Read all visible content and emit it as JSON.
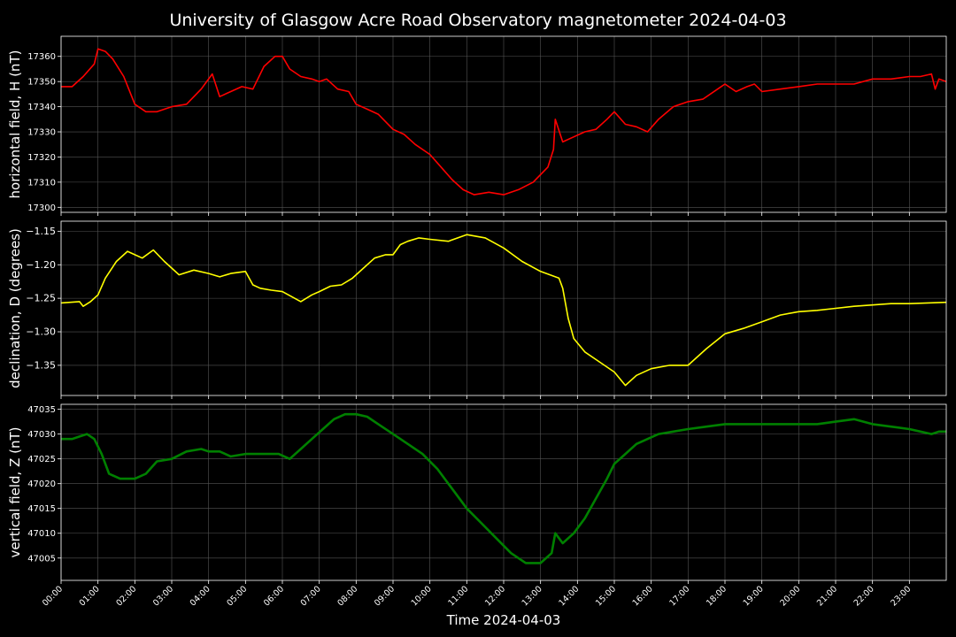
{
  "title": "University of Glasgow Acre Road Observatory magnetometer 2024-04-03",
  "xlabel": "Time 2024-04-03",
  "x_ticks": [
    "00:00",
    "01:00",
    "02:00",
    "03:00",
    "04:00",
    "05:00",
    "06:00",
    "07:00",
    "08:00",
    "09:00",
    "10:00",
    "11:00",
    "12:00",
    "13:00",
    "14:00",
    "15:00",
    "16:00",
    "17:00",
    "18:00",
    "19:00",
    "20:00",
    "21:00",
    "22:00",
    "23:00"
  ],
  "colors": {
    "background": "#000000",
    "H": "#ff0000",
    "D": "#ffff00",
    "Z": "#008000",
    "grid": "#555555"
  },
  "chart_data": [
    {
      "type": "line",
      "name": "H",
      "ylabel": "horizontal field, H (nT)",
      "ylim": [
        17298,
        17368
      ],
      "yticks": [
        "17300",
        "17310",
        "17320",
        "17330",
        "17340",
        "17350",
        "17360"
      ],
      "grid": true,
      "x": [
        0,
        0.3,
        0.6,
        0.9,
        1.0,
        1.2,
        1.4,
        1.7,
        2.0,
        2.3,
        2.6,
        3.0,
        3.4,
        3.8,
        4.1,
        4.3,
        4.6,
        4.9,
        5.2,
        5.5,
        5.8,
        6.0,
        6.2,
        6.5,
        6.8,
        7.0,
        7.2,
        7.5,
        7.8,
        8.0,
        8.3,
        8.6,
        9.0,
        9.3,
        9.6,
        10.0,
        10.3,
        10.6,
        10.9,
        11.2,
        11.6,
        12.0,
        12.4,
        12.8,
        13.2,
        13.35,
        13.4,
        13.6,
        13.9,
        14.2,
        14.5,
        14.8,
        15.0,
        15.3,
        15.6,
        15.9,
        16.2,
        16.6,
        17.0,
        17.4,
        17.8,
        18.0,
        18.3,
        18.6,
        18.8,
        19.0,
        19.5,
        20.0,
        20.5,
        21.0,
        21.5,
        22.0,
        22.5,
        23.0,
        23.3,
        23.6,
        23.7,
        23.8,
        24.0
      ],
      "y": [
        17348,
        17348,
        17352,
        17357,
        17363,
        17362,
        17359,
        17352,
        17341,
        17338,
        17338,
        17340,
        17341,
        17347,
        17353,
        17344,
        17346,
        17348,
        17347,
        17356,
        17360,
        17360,
        17355,
        17352,
        17351,
        17350,
        17351,
        17347,
        17346,
        17341,
        17339,
        17337,
        17331,
        17329,
        17325,
        17321,
        17316,
        17311,
        17307,
        17305,
        17306,
        17305,
        17307,
        17310,
        17316,
        17323,
        17335,
        17326,
        17328,
        17330,
        17331,
        17335,
        17338,
        17333,
        17332,
        17330,
        17335,
        17340,
        17342,
        17343,
        17347,
        17349,
        17346,
        17348,
        17349,
        17346,
        17347,
        17348,
        17349,
        17349,
        17349,
        17351,
        17351,
        17352,
        17352,
        17353,
        17347,
        17351,
        17350
      ]
    },
    {
      "type": "line",
      "name": "D",
      "ylabel": "declination, D (degrees)",
      "ylim": [
        -1.395,
        -1.135
      ],
      "yticks": [
        "−1.15",
        "−1.20",
        "−1.25",
        "−1.30",
        "−1.35"
      ],
      "grid": true,
      "x": [
        0,
        0.5,
        0.6,
        0.8,
        1.0,
        1.2,
        1.5,
        1.8,
        2.0,
        2.2,
        2.5,
        2.8,
        3.2,
        3.6,
        4.0,
        4.3,
        4.6,
        5.0,
        5.2,
        5.4,
        5.7,
        6.0,
        6.5,
        6.8,
        7.0,
        7.3,
        7.6,
        7.9,
        8.2,
        8.5,
        8.8,
        9.0,
        9.2,
        9.4,
        9.7,
        10.0,
        10.5,
        11.0,
        11.5,
        12.0,
        12.5,
        13.0,
        13.5,
        13.6,
        13.75,
        13.9,
        14.2,
        14.6,
        15.0,
        15.3,
        15.6,
        16.0,
        16.5,
        17.0,
        17.5,
        18.0,
        18.5,
        19.0,
        19.5,
        20.0,
        20.5,
        21.0,
        21.5,
        22.0,
        22.5,
        23.0,
        23.5,
        24.0
      ],
      "y": [
        -1.257,
        -1.255,
        -1.262,
        -1.255,
        -1.245,
        -1.22,
        -1.195,
        -1.18,
        -1.185,
        -1.19,
        -1.178,
        -1.195,
        -1.215,
        -1.208,
        -1.213,
        -1.218,
        -1.213,
        -1.21,
        -1.23,
        -1.235,
        -1.238,
        -1.24,
        -1.255,
        -1.245,
        -1.24,
        -1.232,
        -1.23,
        -1.22,
        -1.205,
        -1.19,
        -1.185,
        -1.185,
        -1.17,
        -1.165,
        -1.16,
        -1.162,
        -1.165,
        -1.155,
        -1.16,
        -1.175,
        -1.195,
        -1.21,
        -1.22,
        -1.235,
        -1.28,
        -1.31,
        -1.33,
        -1.345,
        -1.36,
        -1.38,
        -1.365,
        -1.355,
        -1.35,
        -1.35,
        -1.325,
        -1.303,
        -1.295,
        -1.285,
        -1.275,
        -1.27,
        -1.268,
        -1.265,
        -1.262,
        -1.26,
        -1.258,
        -1.258,
        -1.257,
        -1.256
      ]
    },
    {
      "type": "line",
      "name": "Z",
      "ylabel": "vertical field, Z (nT)",
      "ylim": [
        47000.5,
        47036.0
      ],
      "yticks": [
        "47005",
        "47010",
        "47015",
        "47020",
        "47025",
        "47030",
        "47035"
      ],
      "grid": true,
      "x": [
        0,
        0.3,
        0.5,
        0.7,
        0.9,
        1.1,
        1.3,
        1.6,
        2.0,
        2.3,
        2.6,
        3.0,
        3.4,
        3.8,
        4.0,
        4.3,
        4.6,
        5.0,
        5.3,
        5.6,
        5.9,
        6.2,
        6.5,
        6.8,
        7.1,
        7.4,
        7.7,
        8.0,
        8.3,
        8.6,
        9.0,
        9.4,
        9.8,
        10.2,
        10.6,
        11.0,
        11.4,
        11.8,
        12.2,
        12.6,
        13.0,
        13.3,
        13.4,
        13.6,
        13.9,
        14.2,
        14.5,
        14.8,
        15.0,
        15.3,
        15.6,
        15.9,
        16.2,
        16.6,
        17.0,
        17.5,
        18.0,
        18.5,
        19.0,
        19.5,
        20.0,
        20.5,
        21.0,
        21.5,
        22.0,
        22.5,
        23.0,
        23.3,
        23.6,
        23.8,
        24.0
      ],
      "y": [
        47029,
        47029,
        47029.5,
        47030,
        47029,
        47026,
        47022,
        47021,
        47021,
        47022,
        47024.5,
        47025,
        47026.5,
        47027,
        47026.5,
        47026.5,
        47025.5,
        47026,
        47026,
        47026,
        47026,
        47025,
        47027,
        47029,
        47031,
        47033,
        47034,
        47034,
        47033.5,
        47032,
        47030,
        47028,
        47026,
        47023,
        47019,
        47015,
        47012,
        47009,
        47006,
        47004,
        47004,
        47006,
        47010,
        47008,
        47010,
        47013,
        47017,
        47021,
        47024,
        47026,
        47028,
        47029,
        47030,
        47030.5,
        47031,
        47031.5,
        47032,
        47032,
        47032,
        47032,
        47032,
        47032,
        47032.5,
        47033,
        47032,
        47031.5,
        47031,
        47030.5,
        47030,
        47030.5,
        47030.5
      ]
    }
  ]
}
